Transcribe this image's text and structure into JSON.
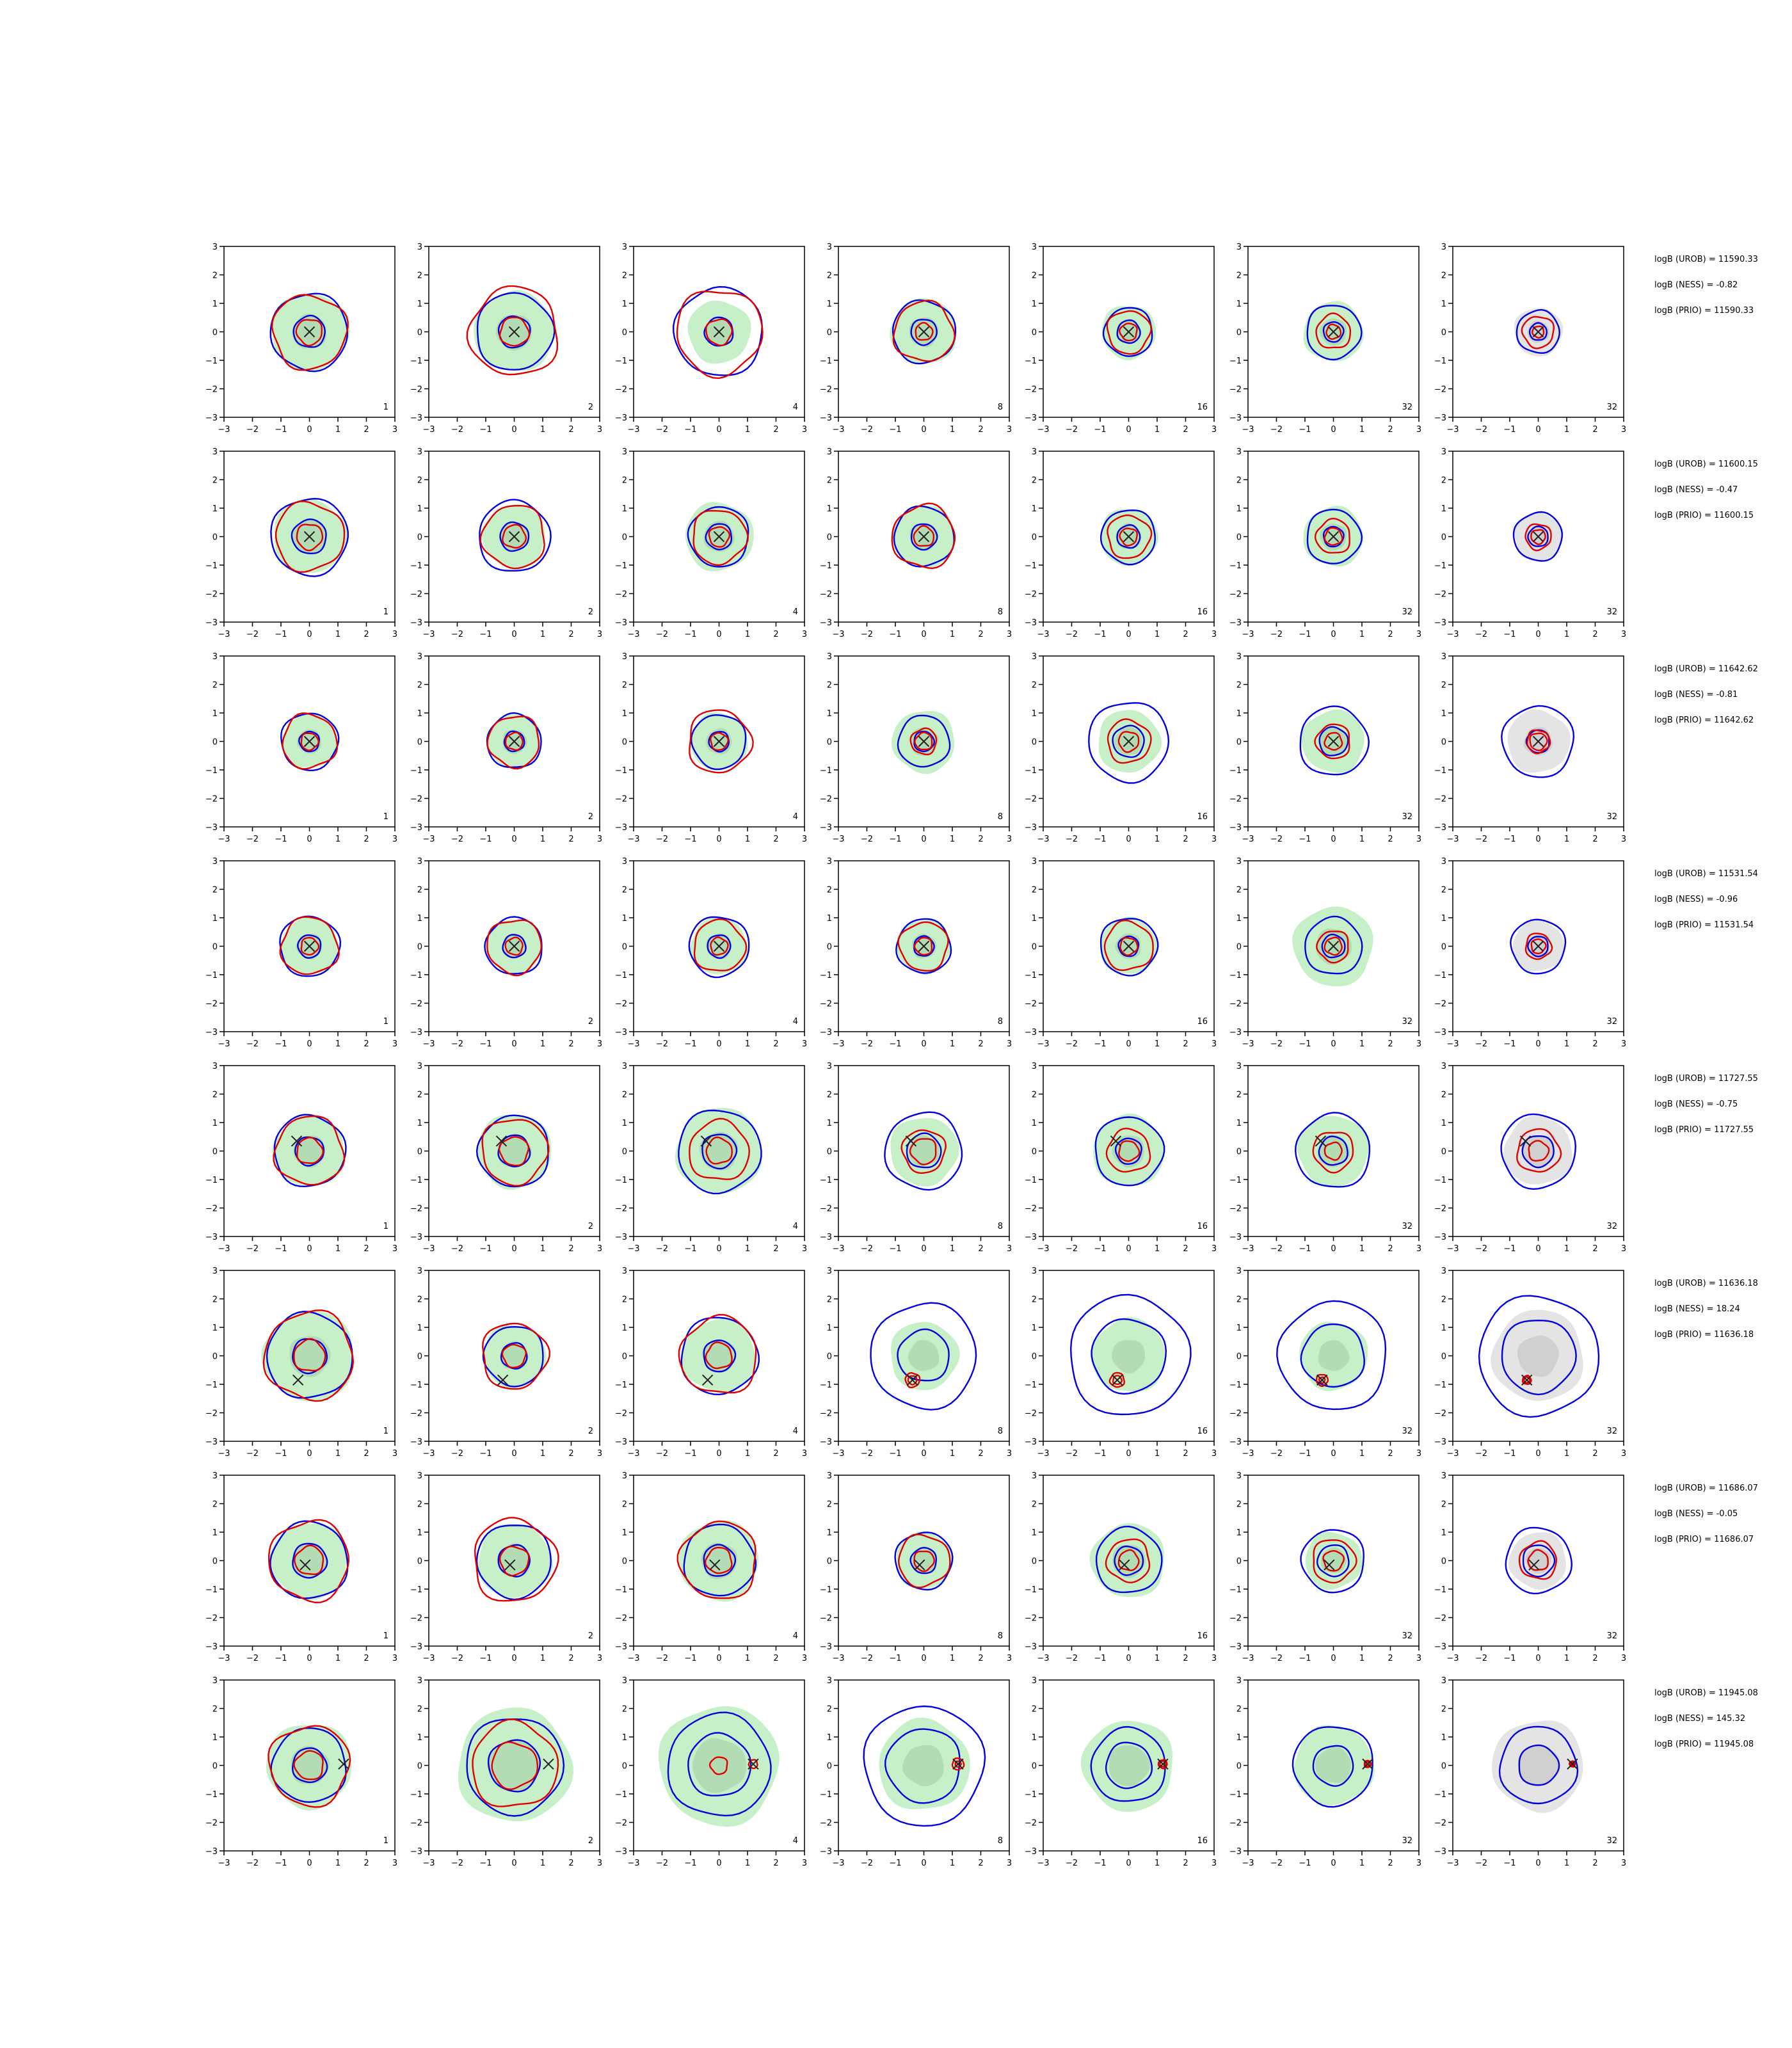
{
  "chart_data": {
    "type": "contour",
    "xlim": [
      -3,
      3
    ],
    "ylim": [
      -3,
      3
    ],
    "xticks": [
      -3,
      -2,
      -1,
      0,
      1,
      2,
      3
    ],
    "yticks": [
      -3,
      -2,
      -1,
      0,
      1,
      2,
      3
    ],
    "tick_labels": [
      "−3",
      "−2",
      "−1",
      "0",
      "1",
      "2",
      "3"
    ],
    "panel_labels": [
      "1",
      "2",
      "4",
      "8",
      "16",
      "32",
      "32"
    ],
    "colors": {
      "blue_contour": "#0000e0",
      "red_contour": "#e00000",
      "green_fill": "#c8f0c8",
      "green_inner": "#b4dcb4",
      "grey_fill": "#e4e4e4",
      "grey_inner": "#d0d0d0",
      "marker": "#222222"
    },
    "rows": [
      {
        "logB_UROB": "logB (UROB) = 11590.33",
        "logB_NESS": "logB (NESS) = -0.82",
        "logB_PRIO": "logB (PRIO) = 11590.33",
        "marker": [
          0,
          0
        ],
        "panels": [
          {
            "blue": [
              0.55,
              1.35
            ],
            "red": [
              0.45,
              1.3
            ],
            "green": 1.35
          },
          {
            "blue": [
              0.55,
              1.35
            ],
            "red": [
              0.5,
              1.55
            ],
            "green": 1.4
          },
          {
            "blue": [
              0.5,
              1.55
            ],
            "red": [
              0.45,
              1.5
            ],
            "green": 1.1
          },
          {
            "blue": [
              0.45,
              1.1
            ],
            "red": [
              0.3,
              1.05
            ],
            "green": 1.15
          },
          {
            "blue": [
              0.4,
              0.85
            ],
            "red": [
              0.3,
              0.75
            ],
            "green": 0.95
          },
          {
            "blue": [
              0.35,
              0.95
            ],
            "red": [
              0.25,
              0.6
            ],
            "green": 1.05
          },
          {
            "blue": [
              0.3,
              0.75
            ],
            "red": [
              0.2,
              0.55
            ],
            "green": 0.85
          }
        ]
      },
      {
        "logB_UROB": "logB (UROB) = 11600.15",
        "logB_NESS": "logB (NESS) = -0.47",
        "logB_PRIO": "logB (PRIO) = 11600.15",
        "marker": [
          0,
          0
        ],
        "panels": [
          {
            "blue": [
              0.6,
              1.35
            ],
            "red": [
              0.45,
              1.2
            ],
            "green": 1.3
          },
          {
            "blue": [
              0.5,
              1.25
            ],
            "red": [
              0.4,
              1.1
            ],
            "green": 1.1
          },
          {
            "blue": [
              0.45,
              1.05
            ],
            "red": [
              0.35,
              0.95
            ],
            "green": 1.2
          },
          {
            "blue": [
              0.45,
              1.05
            ],
            "red": [
              0.35,
              1.1
            ],
            "green": 1.1
          },
          {
            "blue": [
              0.4,
              0.95
            ],
            "red": [
              0.3,
              0.75
            ],
            "green": 1.0
          },
          {
            "blue": [
              0.35,
              0.95
            ],
            "red": [
              0.3,
              0.6
            ],
            "green": 1.05
          },
          {
            "blue": [
              0.35,
              0.85
            ],
            "red": [
              0.25,
              0.45
            ],
            "green": 0.85
          }
        ]
      },
      {
        "logB_UROB": "logB (UROB) = 11642.62",
        "logB_NESS": "logB (NESS) = -0.81",
        "logB_PRIO": "logB (PRIO) = 11642.62",
        "marker": [
          0,
          0
        ],
        "panels": [
          {
            "blue": [
              0.35,
              1.0
            ],
            "red": [
              0.3,
              0.95
            ],
            "green": 0.95
          },
          {
            "blue": [
              0.35,
              0.95
            ],
            "red": [
              0.3,
              0.9
            ],
            "green": 0.95
          },
          {
            "blue": [
              0.35,
              0.95
            ],
            "red": [
              0.3,
              1.1
            ],
            "green": 1.0
          },
          {
            "blue": [
              0.35,
              0.9
            ],
            "red": [
              0.3,
              0.45
            ],
            "green": 1.1
          },
          {
            "blue": [
              0.55,
              1.4
            ],
            "red": [
              0.35,
              0.75
            ],
            "green": 1.1
          },
          {
            "blue": [
              0.5,
              1.2
            ],
            "red": [
              0.3,
              0.6
            ],
            "green": 1.1
          },
          {
            "blue": [
              0.4,
              1.25
            ],
            "red": [
              0.3,
              0.4
            ],
            "green": 1.1
          }
        ]
      },
      {
        "logB_UROB": "logB (UROB) = 11531.54",
        "logB_NESS": "logB (NESS) = -0.96",
        "logB_PRIO": "logB (PRIO) = 11531.54",
        "marker": [
          0,
          0
        ],
        "panels": [
          {
            "blue": [
              0.4,
              1.05
            ],
            "red": [
              0.3,
              1.0
            ],
            "green": 1.0
          },
          {
            "blue": [
              0.4,
              1.0
            ],
            "red": [
              0.3,
              0.95
            ],
            "green": 0.95
          },
          {
            "blue": [
              0.4,
              1.05
            ],
            "red": [
              0.3,
              0.9
            ],
            "green": 1.0
          },
          {
            "blue": [
              0.35,
              0.95
            ],
            "red": [
              0.3,
              0.85
            ],
            "green": 0.95
          },
          {
            "blue": [
              0.35,
              1.0
            ],
            "red": [
              0.3,
              0.85
            ],
            "green": 1.0
          },
          {
            "blue": [
              0.4,
              1.0
            ],
            "red": [
              0.3,
              0.55
            ],
            "green": 1.4
          },
          {
            "blue": [
              0.35,
              0.95
            ],
            "red": [
              0.25,
              0.45
            ],
            "green": 0.9
          }
        ]
      },
      {
        "logB_UROB": "logB (UROB) = 11727.55",
        "logB_NESS": "logB (NESS) = -0.75",
        "logB_PRIO": "logB (PRIO) = 11727.55",
        "marker": [
          -0.45,
          0.35
        ],
        "panels": [
          {
            "blue": [
              0.5,
              1.25
            ],
            "red": [
              0.45,
              1.2
            ],
            "green": 1.25
          },
          {
            "blue": [
              0.55,
              1.25
            ],
            "red": [
              0.5,
              1.15
            ],
            "green": 1.3
          },
          {
            "blue": [
              0.6,
              1.45
            ],
            "red": [
              0.45,
              1.05
            ],
            "green": 1.5
          },
          {
            "blue": [
              0.6,
              1.35
            ],
            "red": [
              0.45,
              0.75
            ],
            "green": 1.2
          },
          {
            "blue": [
              0.45,
              1.2
            ],
            "red": [
              0.35,
              0.75
            ],
            "green": 1.25
          },
          {
            "blue": [
              0.5,
              1.3
            ],
            "red": [
              0.3,
              0.7
            ],
            "green": 1.25
          },
          {
            "blue": [
              0.55,
              1.3
            ],
            "red": [
              0.35,
              0.75
            ],
            "green": 1.2
          }
        ]
      },
      {
        "logB_UROB": "logB (UROB) = 11636.18",
        "logB_NESS": "logB (NESS) = 18.24",
        "logB_PRIO": "logB (PRIO) = 11636.18",
        "marker": [
          -0.4,
          -0.85
        ],
        "panels": [
          {
            "blue": [
              0.6,
              1.5
            ],
            "red": [
              0.55,
              1.55
            ],
            "green": 1.6
          },
          {
            "blue": [
              0.45,
              1.05
            ],
            "red": [
              0.4,
              1.15
            ],
            "green": 1.1
          },
          {
            "blue": [
              0.55,
              1.35
            ],
            "red": [
              0.45,
              1.35
            ],
            "green": 1.3
          },
          {
            "blue": [
              0.9,
              1.85
            ],
            "red": [
              0.15,
              0.25
            ],
            "green": 1.2
          },
          {
            "blue": [
              1.3,
              2.1
            ],
            "red": [
              0.15,
              0.25
            ],
            "green": 1.3
          },
          {
            "blue": [
              1.1,
              1.9
            ],
            "red": [
              0.1,
              0.2
            ],
            "green": 1.2
          },
          {
            "blue": [
              1.3,
              2.1
            ],
            "red": [
              0.1,
              0.15
            ],
            "green": 1.6
          }
        ]
      },
      {
        "logB_UROB": "logB (UROB) = 11686.07",
        "logB_NESS": "logB (NESS) = -0.05",
        "logB_PRIO": "logB (PRIO) = 11686.07",
        "marker": [
          -0.15,
          -0.15
        ],
        "panels": [
          {
            "blue": [
              0.6,
              1.35
            ],
            "red": [
              0.5,
              1.4
            ],
            "green": 1.35
          },
          {
            "blue": [
              0.55,
              1.3
            ],
            "red": [
              0.5,
              1.45
            ],
            "green": 1.3
          },
          {
            "blue": [
              0.55,
              1.25
            ],
            "red": [
              0.45,
              1.35
            ],
            "green": 1.4
          },
          {
            "blue": [
              0.45,
              1.0
            ],
            "red": [
              0.35,
              0.9
            ],
            "green": 1.0
          },
          {
            "blue": [
              0.5,
              1.15
            ],
            "red": [
              0.35,
              0.75
            ],
            "green": 1.3
          },
          {
            "blue": [
              0.55,
              1.1
            ],
            "red": [
              0.35,
              0.75
            ],
            "green": 1.0
          },
          {
            "blue": [
              0.55,
              1.15
            ],
            "red": [
              0.35,
              0.65
            ],
            "green": 1.0
          }
        ]
      },
      {
        "logB_UROB": "logB (UROB) = 11945.08",
        "logB_NESS": "logB (NESS) = 145.32",
        "logB_PRIO": "logB (PRIO) = 11945.08",
        "marker": [
          1.2,
          0.05
        ],
        "panels": [
          {
            "blue": [
              0.6,
              1.3
            ],
            "red": [
              0.5,
              1.4
            ],
            "green": 1.5
          },
          {
            "blue": [
              0.9,
              1.7
            ],
            "red": [
              0.8,
              1.5
            ],
            "green": 2.0
          },
          {
            "blue": [
              1.1,
              1.8
            ],
            "red": [
              0.15,
              0.3
            ],
            "green": 2.1
          },
          {
            "blue": [
              1.3,
              2.1
            ],
            "red": [
              0.1,
              0.2
            ],
            "green": 1.6
          },
          {
            "blue": [
              0.8,
              1.3
            ],
            "red": [
              0.1,
              0.15
            ],
            "green": 1.6
          },
          {
            "blue": [
              0.7,
              1.4
            ],
            "red": [
              0.08,
              0.12
            ],
            "green": 1.4
          },
          {
            "blue": [
              0.7,
              1.35
            ],
            "red": [
              0.06,
              0.1
            ],
            "green": 1.6
          }
        ]
      }
    ]
  }
}
